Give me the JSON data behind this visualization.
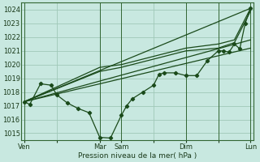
{
  "bg_color": "#c8e8e0",
  "grid_color": "#a0c8b8",
  "line_color": "#1a4a1a",
  "marker_color": "#1a4a1a",
  "xlabel": "Pression niveau de la mer( hPa )",
  "ylim": [
    1014.5,
    1024.5
  ],
  "yticks": [
    1015,
    1016,
    1017,
    1018,
    1019,
    1020,
    1021,
    1022,
    1023,
    1024
  ],
  "xlim": [
    -0.3,
    21.3
  ],
  "xtick_labels": [
    "Ven",
    "",
    "Mar",
    "Sam",
    "",
    "Dim",
    "",
    "Lun"
  ],
  "xtick_positions": [
    0,
    3,
    7,
    9,
    12,
    15,
    18,
    21
  ],
  "vlines": [
    0,
    7,
    9,
    15,
    18,
    21
  ],
  "main_series": {
    "x": [
      0,
      0.5,
      1.5,
      2.5,
      3,
      4,
      5,
      6,
      7,
      8,
      9,
      9.5,
      10,
      11,
      12,
      12.5,
      13,
      14,
      15,
      16,
      17,
      18,
      18.5,
      19,
      19.5,
      20,
      20.5,
      21
    ],
    "y": [
      1017.3,
      1017.1,
      1018.6,
      1018.5,
      1017.8,
      1017.2,
      1016.8,
      1016.5,
      1014.7,
      1014.65,
      1016.3,
      1017.0,
      1017.5,
      1018.0,
      1018.5,
      1019.3,
      1019.4,
      1019.4,
      1019.2,
      1019.2,
      1020.3,
      1021.0,
      1021.0,
      1020.9,
      1021.5,
      1021.15,
      1023.0,
      1024.1
    ]
  },
  "upper_line": {
    "x": [
      0,
      21
    ],
    "y": [
      1017.3,
      1024.1
    ]
  },
  "mid_line1": {
    "x": [
      0,
      21
    ],
    "y": [
      1017.3,
      1021.8
    ]
  },
  "mid_line2": {
    "x": [
      0,
      21
    ],
    "y": [
      1017.3,
      1021.2
    ]
  },
  "segment_upper": {
    "x": [
      0,
      7,
      9,
      15,
      18,
      19.5,
      21
    ],
    "y": [
      1017.3,
      1019.8,
      1020.0,
      1021.2,
      1021.5,
      1021.8,
      1024.1
    ]
  },
  "segment_lower": {
    "x": [
      0,
      7,
      9,
      15,
      18,
      19.5,
      21
    ],
    "y": [
      1017.3,
      1019.5,
      1019.8,
      1021.0,
      1021.2,
      1021.6,
      1023.9
    ]
  }
}
